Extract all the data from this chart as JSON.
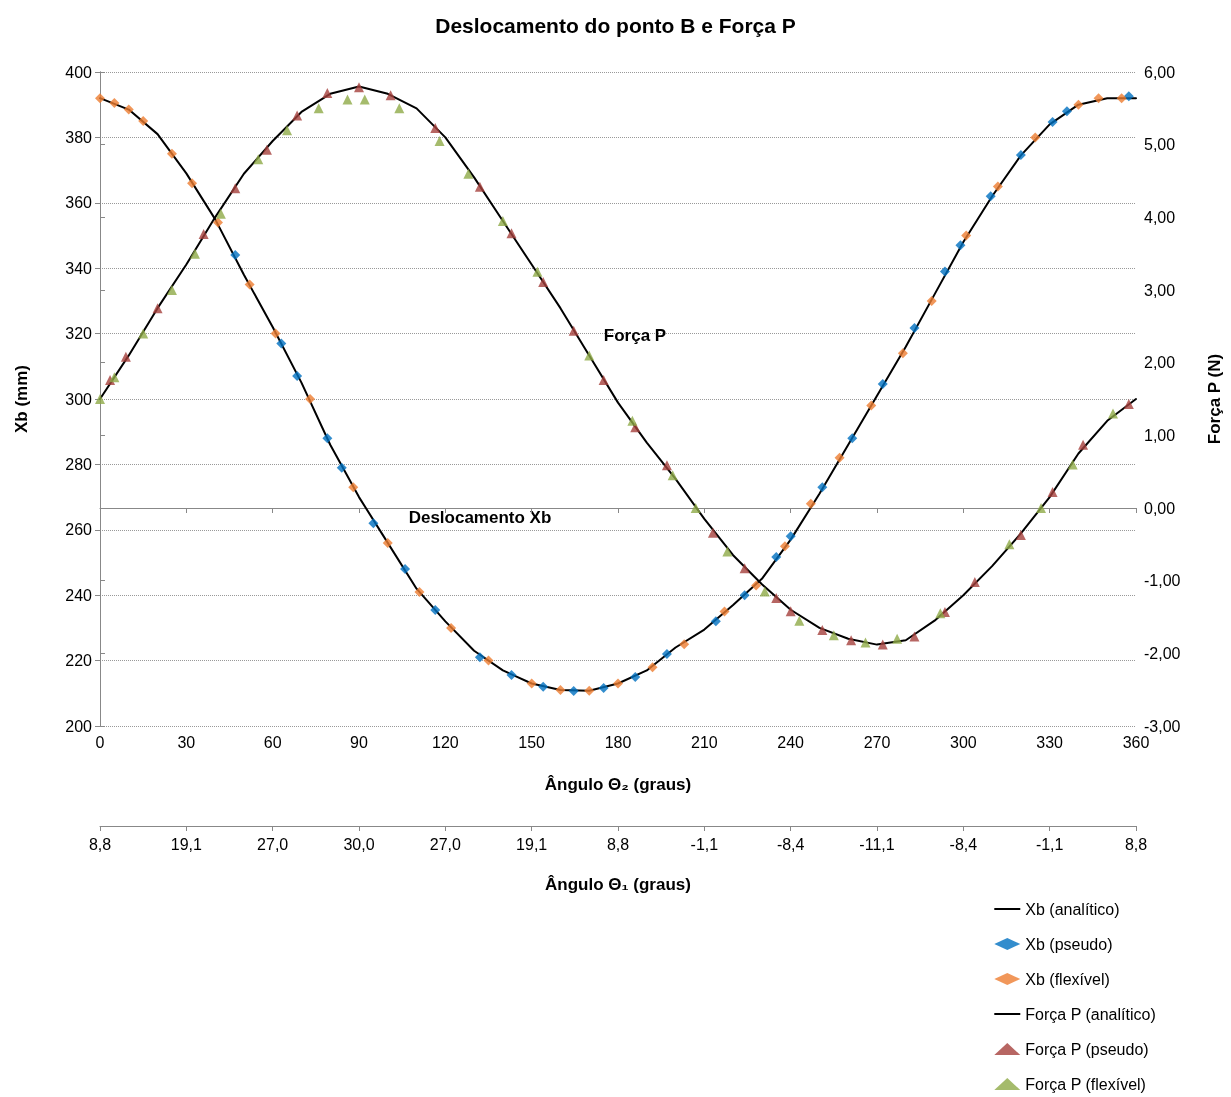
{
  "chart_data": {
    "type": "line",
    "title": "Deslocamento do ponto B e Força P",
    "xlabel": "Ângulo Θ₂ (graus)",
    "ylabel": "Xb (mm)",
    "y2label": "Força P (N)",
    "x2label": "Ângulo Θ₁ (graus)",
    "xlim": [
      0,
      360
    ],
    "xticks": [
      0,
      30,
      60,
      90,
      120,
      150,
      180,
      210,
      240,
      270,
      300,
      330,
      360
    ],
    "ylim": [
      200,
      400
    ],
    "yticks": [
      200,
      220,
      240,
      260,
      280,
      300,
      320,
      340,
      360,
      380,
      400
    ],
    "y2lim": [
      -3,
      6
    ],
    "y2ticks": [
      {
        "value": -3,
        "label": "-3,00"
      },
      {
        "value": -2,
        "label": "-2,00"
      },
      {
        "value": -1,
        "label": "-1,00"
      },
      {
        "value": 0,
        "label": "0,00"
      },
      {
        "value": 1,
        "label": "1,00"
      },
      {
        "value": 2,
        "label": "2,00"
      },
      {
        "value": 3,
        "label": "3,00"
      },
      {
        "value": 4,
        "label": "4,00"
      },
      {
        "value": 5,
        "label": "5,00"
      },
      {
        "value": 6,
        "label": "6,00"
      }
    ],
    "grid": "y",
    "legend": "bottom right",
    "annotations": [
      "Força P",
      "Deslocamento Xb",
      "8,8",
      "19,1",
      "27,0",
      "30,0",
      "27,0",
      "19,1",
      "8,8",
      "-1,1",
      "-8,4",
      "-11,1",
      "-8,4",
      "-1,1",
      "8,8"
    ],
    "series": [
      {
        "name": "Xb (analítico)",
        "marker": "none",
        "line_style": "solid",
        "color": "#000000",
        "x": [
          0,
          10,
          20,
          30,
          40,
          50,
          60,
          70,
          80,
          90,
          100,
          110,
          120,
          130,
          140,
          150,
          160,
          170,
          180,
          190,
          200,
          210,
          220,
          230,
          240,
          250,
          260,
          270,
          280,
          290,
          300,
          310,
          320,
          330,
          340,
          350,
          360
        ],
        "values": [
          392,
          388.5,
          381,
          369,
          355,
          338,
          322,
          305,
          286,
          270,
          256,
          242,
          232,
          223,
          217,
          213,
          211,
          210.8,
          213,
          217,
          224,
          229.5,
          237,
          245,
          257,
          271,
          286,
          301,
          316,
          332,
          348,
          362,
          374.5,
          384,
          390,
          392,
          392
        ]
      },
      {
        "name": "Xb (pseudo)",
        "type": "scatter",
        "marker": "diamond",
        "color": "#0070c0",
        "x": [
          47,
          63,
          68.5,
          79,
          84,
          95,
          106,
          116.5,
          132,
          143,
          154,
          164.6,
          175,
          186,
          197,
          214,
          224,
          235,
          240,
          251,
          261.4,
          272,
          283,
          293.6,
          299,
          309.5,
          320,
          331,
          336,
          357.5
        ],
        "values": [
          344,
          317,
          307,
          288,
          279,
          262,
          248,
          235.5,
          221,
          215.6,
          212,
          210.7,
          211.6,
          215,
          222,
          232,
          240,
          251.7,
          258,
          273,
          288,
          304.6,
          321.7,
          339,
          347,
          362,
          374.6,
          384.7,
          388,
          392.6
        ]
      },
      {
        "name": "Xb (flexível)",
        "type": "scatter",
        "marker": "diamond",
        "color": "#ed7d31",
        "x": [
          0,
          5,
          10,
          15,
          25,
          32,
          41,
          52,
          61,
          73,
          88,
          100,
          111,
          122,
          135,
          150,
          160,
          170,
          180,
          192,
          203,
          217,
          228,
          238,
          247,
          257,
          268,
          279,
          289,
          301,
          312,
          325,
          340,
          347,
          355
        ],
        "values": [
          392,
          390.5,
          388.5,
          385,
          375,
          366,
          354,
          335,
          320,
          300,
          273,
          256,
          241,
          230,
          220,
          213,
          211,
          210.8,
          213,
          218,
          225,
          235,
          243,
          255,
          268,
          282,
          298,
          314,
          330,
          350,
          365,
          380,
          390,
          392,
          392
        ]
      },
      {
        "name": "Força P (analítico)",
        "axis": "y2",
        "marker": "none",
        "line_style": "solid",
        "color": "#000000",
        "x": [
          0,
          10,
          20,
          30,
          40,
          50,
          60,
          70,
          80,
          90,
          100,
          110,
          120,
          130,
          140,
          150,
          160,
          170,
          180,
          190,
          200,
          210,
          220,
          230,
          240,
          250,
          260,
          270,
          280,
          290,
          300,
          310,
          320,
          330,
          340,
          350,
          360
        ],
        "values": [
          1.5,
          2.1,
          2.75,
          3.35,
          4.0,
          4.6,
          5.05,
          5.45,
          5.7,
          5.8,
          5.7,
          5.5,
          5.1,
          4.55,
          3.95,
          3.35,
          2.75,
          2.1,
          1.45,
          0.9,
          0.4,
          -0.15,
          -0.65,
          -1.05,
          -1.4,
          -1.65,
          -1.8,
          -1.88,
          -1.82,
          -1.55,
          -1.2,
          -0.8,
          -0.35,
          0.15,
          0.75,
          1.2,
          1.5
        ]
      },
      {
        "name": "Força P (pseudo)",
        "type": "scatter",
        "axis": "y2",
        "marker": "triangle",
        "color": "#a5403c",
        "x": [
          3.5,
          9,
          20,
          36,
          47,
          58,
          68.5,
          79,
          90,
          101,
          116.5,
          132,
          143,
          154,
          164.6,
          175,
          186,
          197,
          213,
          224,
          235,
          240,
          251,
          261,
          272,
          283,
          293.6,
          304,
          320,
          331,
          341.6,
          357.5
        ],
        "values": [
          1.76,
          2.08,
          2.75,
          3.77,
          4.4,
          4.93,
          5.4,
          5.71,
          5.79,
          5.68,
          5.23,
          4.42,
          3.78,
          3.11,
          2.44,
          1.76,
          1.11,
          0.59,
          -0.34,
          -0.83,
          -1.24,
          -1.42,
          -1.68,
          -1.82,
          -1.88,
          -1.77,
          -1.43,
          -1.02,
          -0.37,
          0.22,
          0.87,
          1.43
        ]
      },
      {
        "name": "Força P (flexível)",
        "type": "scatter",
        "axis": "y2",
        "marker": "triangle",
        "color": "#8faa47",
        "x": [
          0,
          5,
          15,
          25,
          33,
          42,
          55,
          65,
          76,
          86,
          92,
          104,
          118,
          128,
          140,
          152,
          170,
          185,
          199,
          207,
          218,
          231,
          243,
          255,
          266,
          277,
          292,
          316,
          327,
          338,
          352
        ],
        "values": [
          1.5,
          1.8,
          2.4,
          3.0,
          3.5,
          4.05,
          4.8,
          5.2,
          5.5,
          5.62,
          5.62,
          5.5,
          5.05,
          4.6,
          3.95,
          3.25,
          2.1,
          1.2,
          0.45,
          0.0,
          -0.6,
          -1.15,
          -1.55,
          -1.75,
          -1.85,
          -1.8,
          -1.45,
          -0.5,
          0.0,
          0.6,
          1.3
        ]
      }
    ]
  }
}
